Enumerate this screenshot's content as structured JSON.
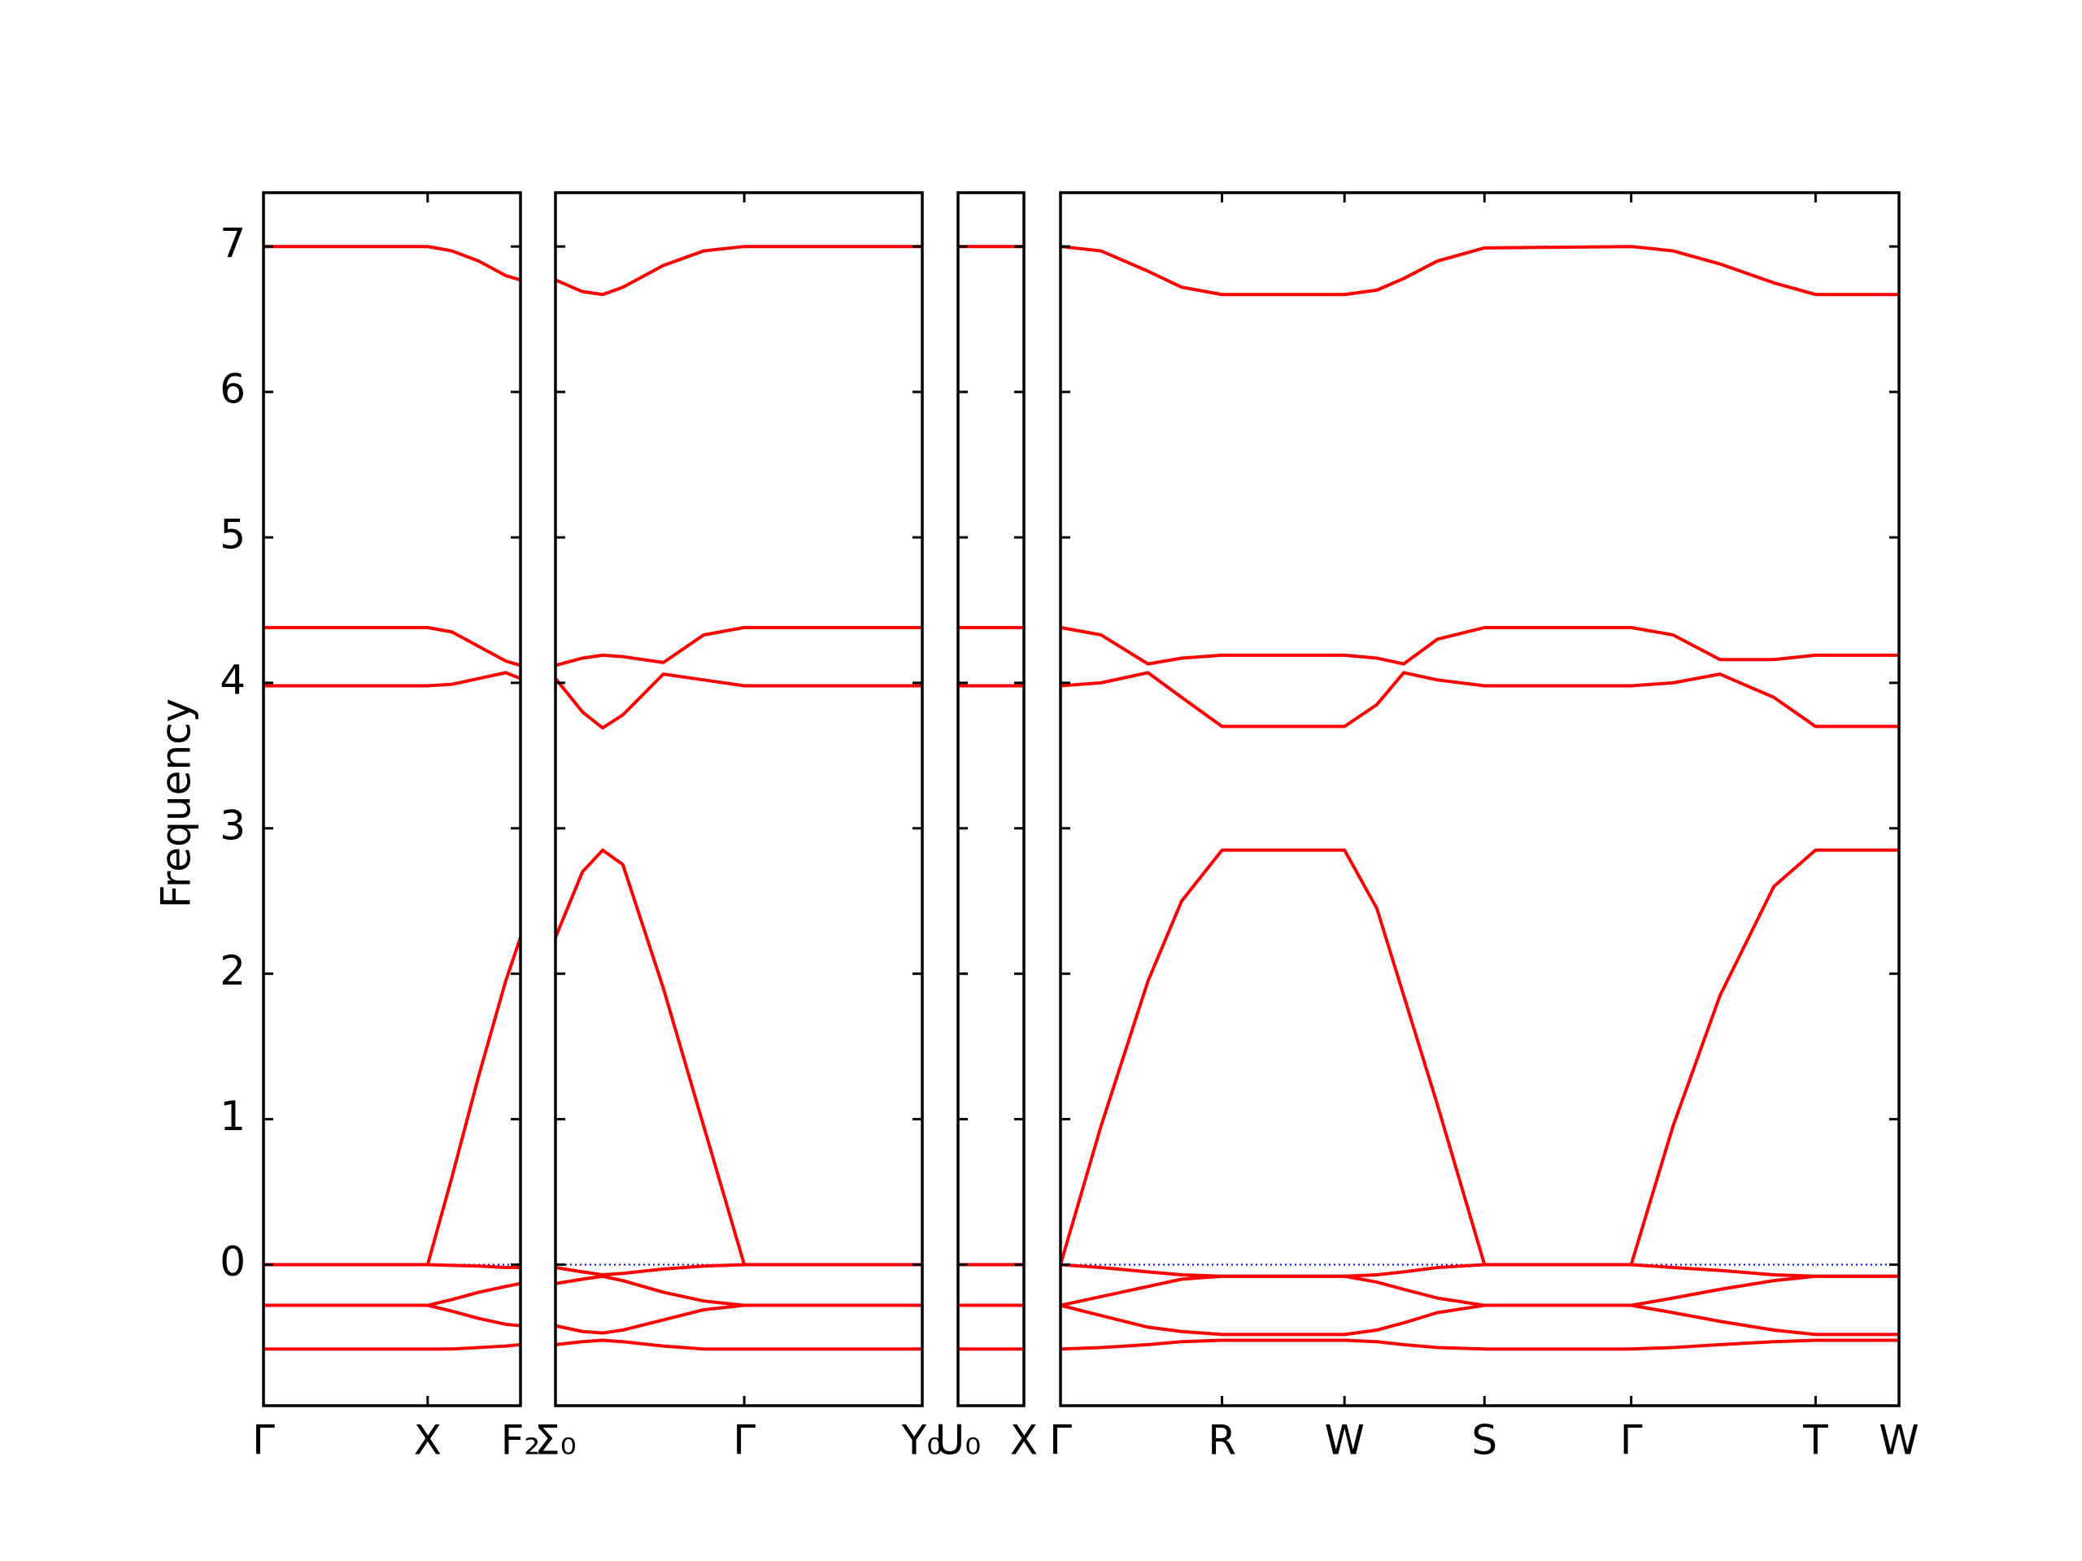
{
  "chart_data": [
    {
      "type": "line",
      "ylabel": "Frequency",
      "yticklabels": true,
      "xlim": [
        0,
        1.91
      ],
      "xticks": [
        {
          "value": 0,
          "label": "Γ"
        },
        {
          "value": 1.22,
          "label": "X"
        },
        {
          "value": 1.91,
          "label": "F₂"
        }
      ],
      "ylim": [
        -0.97,
        7.37
      ],
      "yticks": [
        0,
        1,
        2,
        3,
        4,
        5,
        6,
        7
      ],
      "zero_line": {
        "y": 0,
        "color": "#0000ff"
      },
      "x": [
        0,
        0.6,
        1.22,
        1.4,
        1.6,
        1.8,
        1.91
      ],
      "series": [
        {
          "color": "#ff0000",
          "values": [
            7,
            7,
            7,
            6.97,
            6.9,
            6.8,
            6.77
          ]
        },
        {
          "color": "#ff0000",
          "values": [
            4.38,
            4.38,
            4.38,
            4.35,
            4.25,
            4.15,
            4.12
          ]
        },
        {
          "color": "#ff0000",
          "values": [
            3.98,
            3.98,
            3.98,
            3.99,
            4.03,
            4.07,
            4.03
          ]
        },
        {
          "color": "#ff0000",
          "values": [
            0,
            0,
            0,
            0.6,
            1.3,
            1.95,
            2.25
          ]
        },
        {
          "color": "#ff0000",
          "values": [
            0,
            0,
            0,
            -0.005,
            -0.01,
            -0.02,
            -0.02
          ]
        },
        {
          "color": "#ff0000",
          "values": [
            -0.28,
            -0.28,
            -0.28,
            -0.24,
            -0.19,
            -0.15,
            -0.13
          ]
        },
        {
          "color": "#ff0000",
          "values": [
            -0.28,
            -0.28,
            -0.28,
            -0.32,
            -0.37,
            -0.41,
            -0.42
          ]
        },
        {
          "color": "#ff0000",
          "values": [
            -0.58,
            -0.58,
            -0.58,
            -0.58,
            -0.57,
            -0.56,
            -0.55
          ]
        }
      ]
    },
    {
      "type": "line",
      "xlim": [
        0,
        2.72
      ],
      "xticks": [
        {
          "value": 0,
          "label": "Σ₀"
        },
        {
          "value": 1.4,
          "label": "Γ"
        },
        {
          "value": 2.72,
          "label": "Y₀"
        }
      ],
      "ylim": [
        -0.97,
        7.37
      ],
      "yticks": [
        0,
        1,
        2,
        3,
        4,
        5,
        6,
        7
      ],
      "zero_line": {
        "y": 0,
        "color": "#0000ff"
      },
      "x": [
        0,
        0.2,
        0.35,
        0.5,
        0.8,
        1.1,
        1.4,
        2.0,
        2.72
      ],
      "series": [
        {
          "color": "#ff0000",
          "values": [
            6.77,
            6.69,
            6.67,
            6.72,
            6.87,
            6.97,
            7,
            7,
            7
          ]
        },
        {
          "color": "#ff0000",
          "values": [
            4.12,
            4.17,
            4.19,
            4.18,
            4.14,
            4.33,
            4.38,
            4.38,
            4.38
          ]
        },
        {
          "color": "#ff0000",
          "values": [
            4.03,
            3.8,
            3.69,
            3.78,
            4.06,
            4.02,
            3.98,
            3.98,
            3.98
          ]
        },
        {
          "color": "#ff0000",
          "values": [
            2.25,
            2.7,
            2.85,
            2.75,
            1.9,
            0.95,
            0,
            0,
            0
          ]
        },
        {
          "color": "#ff0000",
          "values": [
            -0.02,
            -0.05,
            -0.07,
            -0.06,
            -0.03,
            -0.01,
            0,
            0,
            0
          ]
        },
        {
          "color": "#ff0000",
          "values": [
            -0.13,
            -0.1,
            -0.08,
            -0.11,
            -0.19,
            -0.25,
            -0.28,
            -0.28,
            -0.28
          ]
        },
        {
          "color": "#ff0000",
          "values": [
            -0.42,
            -0.46,
            -0.47,
            -0.45,
            -0.38,
            -0.31,
            -0.28,
            -0.28,
            -0.28
          ]
        },
        {
          "color": "#ff0000",
          "values": [
            -0.55,
            -0.53,
            -0.52,
            -0.53,
            -0.56,
            -0.58,
            -0.58,
            -0.58,
            -0.58
          ]
        }
      ]
    },
    {
      "type": "line",
      "xlim": [
        0,
        0.49
      ],
      "xticks": [
        {
          "value": 0,
          "label": "U₀"
        },
        {
          "value": 0.49,
          "label": "X"
        }
      ],
      "ylim": [
        -0.97,
        7.37
      ],
      "yticks": [
        0,
        1,
        2,
        3,
        4,
        5,
        6,
        7
      ],
      "zero_line": {
        "y": 0,
        "color": "#0000ff"
      },
      "x": [
        0,
        0.49
      ],
      "series": [
        {
          "color": "#ff0000",
          "values": [
            7,
            7
          ]
        },
        {
          "color": "#ff0000",
          "values": [
            4.38,
            4.38
          ]
        },
        {
          "color": "#ff0000",
          "values": [
            3.98,
            3.98
          ]
        },
        {
          "color": "#ff0000",
          "values": [
            0,
            0
          ]
        },
        {
          "color": "#ff0000",
          "values": [
            0,
            0
          ]
        },
        {
          "color": "#ff0000",
          "values": [
            -0.28,
            -0.28
          ]
        },
        {
          "color": "#ff0000",
          "values": [
            -0.28,
            -0.28
          ]
        },
        {
          "color": "#ff0000",
          "values": [
            -0.58,
            -0.58
          ]
        }
      ]
    },
    {
      "type": "line",
      "xlim": [
        0,
        6.23
      ],
      "xticks": [
        {
          "value": 0,
          "label": "Γ"
        },
        {
          "value": 1.2,
          "label": "R"
        },
        {
          "value": 2.11,
          "label": "W"
        },
        {
          "value": 3.15,
          "label": "S"
        },
        {
          "value": 4.24,
          "label": "Γ"
        },
        {
          "value": 5.61,
          "label": "T"
        },
        {
          "value": 6.23,
          "label": "W"
        }
      ],
      "ylim": [
        -0.97,
        7.37
      ],
      "yticks": [
        0,
        1,
        2,
        3,
        4,
        5,
        6,
        7
      ],
      "zero_line": {
        "y": 0,
        "color": "#0000ff"
      },
      "x": [
        0,
        0.3,
        0.65,
        0.9,
        1.2,
        2.11,
        2.35,
        2.55,
        2.8,
        3.15,
        4.24,
        4.55,
        4.9,
        5.3,
        5.61,
        6.23
      ],
      "series": [
        {
          "color": "#ff0000",
          "values": [
            7,
            6.97,
            6.83,
            6.72,
            6.67,
            6.67,
            6.7,
            6.78,
            6.9,
            6.99,
            7,
            6.97,
            6.88,
            6.75,
            6.67,
            6.67
          ]
        },
        {
          "color": "#ff0000",
          "values": [
            4.38,
            4.33,
            4.13,
            4.17,
            4.19,
            4.19,
            4.17,
            4.13,
            4.3,
            4.38,
            4.38,
            4.33,
            4.16,
            4.16,
            4.19,
            4.19
          ]
        },
        {
          "color": "#ff0000",
          "values": [
            3.98,
            4.0,
            4.07,
            3.9,
            3.7,
            3.7,
            3.85,
            4.07,
            4.02,
            3.98,
            3.98,
            4.0,
            4.06,
            3.9,
            3.7,
            3.7
          ]
        },
        {
          "color": "#ff0000",
          "values": [
            0,
            0.95,
            1.95,
            2.5,
            2.85,
            2.85,
            2.45,
            1.85,
            1.1,
            0,
            0,
            0.95,
            1.85,
            2.6,
            2.85,
            2.85
          ]
        },
        {
          "color": "#ff0000",
          "values": [
            0,
            -0.02,
            -0.05,
            -0.07,
            -0.08,
            -0.08,
            -0.07,
            -0.05,
            -0.02,
            0,
            0,
            -0.02,
            -0.04,
            -0.07,
            -0.08,
            -0.08
          ]
        },
        {
          "color": "#ff0000",
          "values": [
            -0.28,
            -0.22,
            -0.15,
            -0.1,
            -0.08,
            -0.08,
            -0.12,
            -0.17,
            -0.23,
            -0.28,
            -0.28,
            -0.23,
            -0.17,
            -0.11,
            -0.08,
            -0.08
          ]
        },
        {
          "color": "#ff0000",
          "values": [
            -0.28,
            -0.35,
            -0.43,
            -0.46,
            -0.48,
            -0.48,
            -0.45,
            -0.4,
            -0.33,
            -0.28,
            -0.28,
            -0.33,
            -0.39,
            -0.45,
            -0.48,
            -0.48
          ]
        },
        {
          "color": "#ff0000",
          "values": [
            -0.58,
            -0.57,
            -0.55,
            -0.53,
            -0.52,
            -0.52,
            -0.53,
            -0.55,
            -0.57,
            -0.58,
            -0.58,
            -0.57,
            -0.55,
            -0.53,
            -0.52,
            -0.52
          ]
        }
      ]
    }
  ]
}
